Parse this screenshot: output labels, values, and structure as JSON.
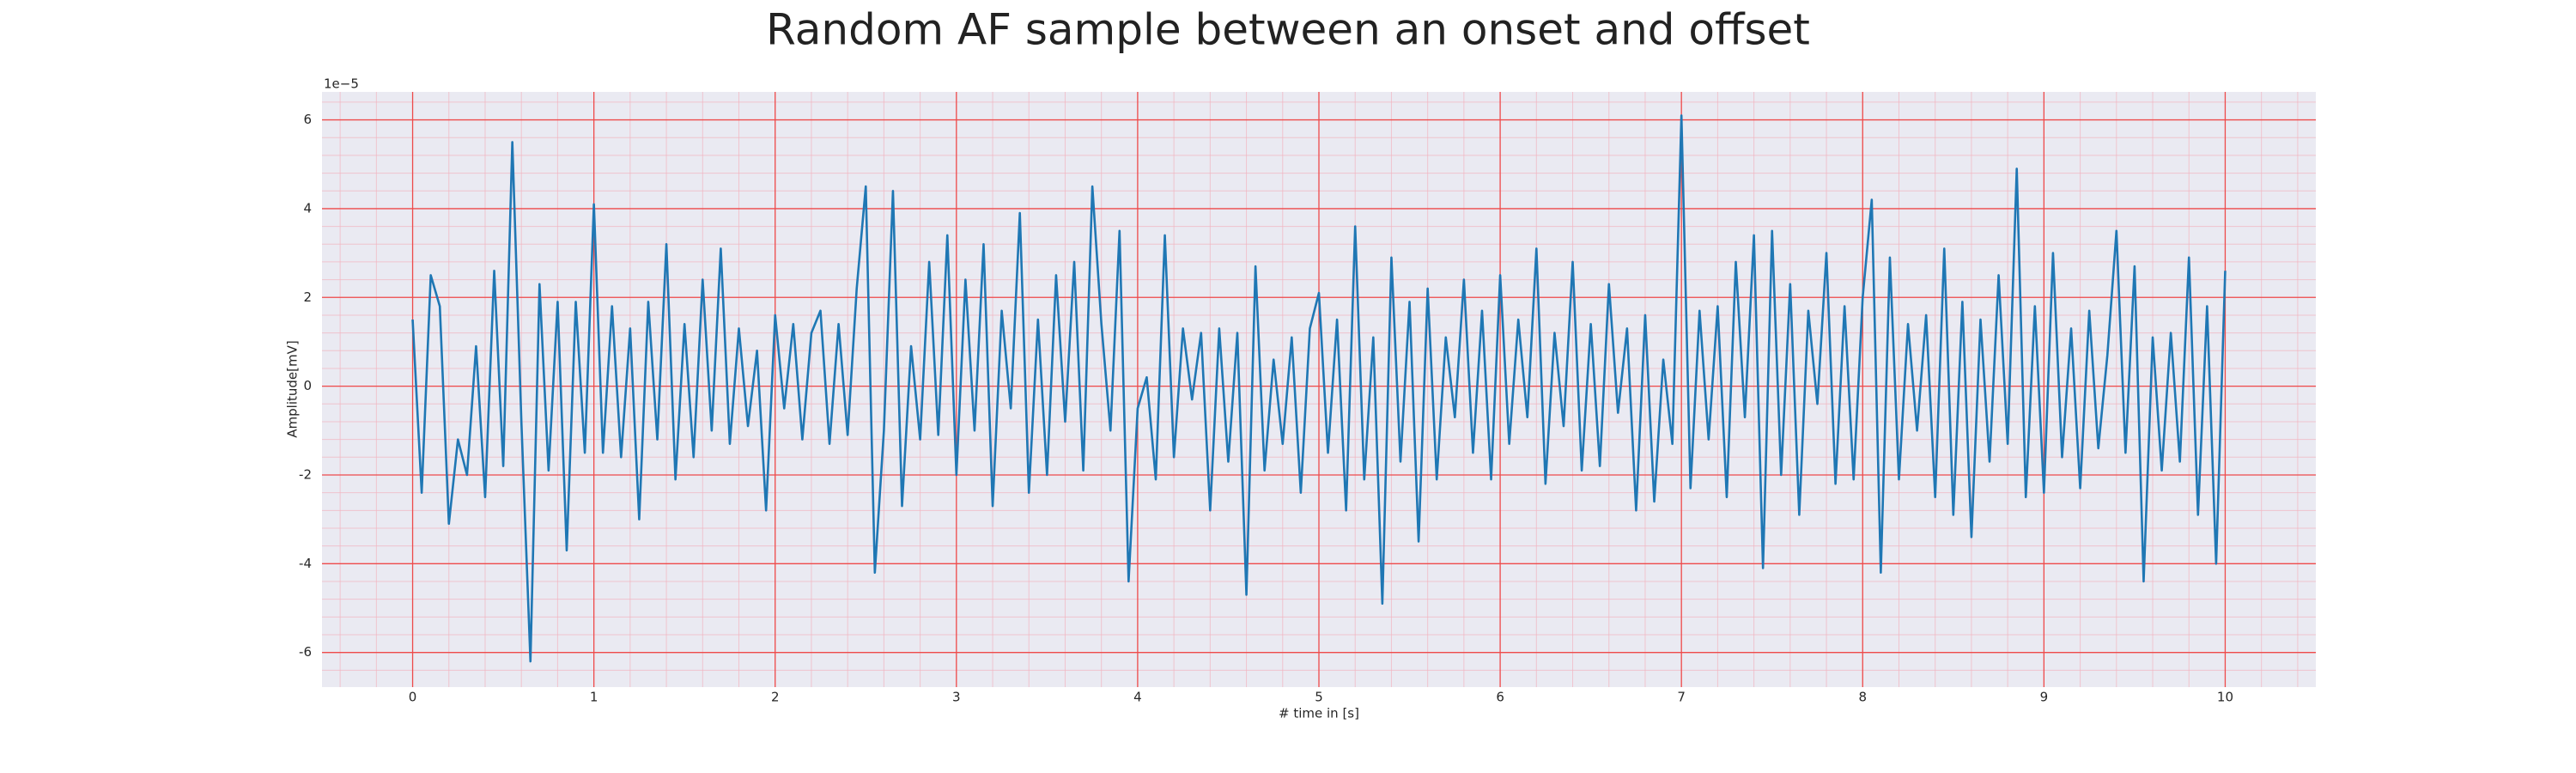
{
  "chart_data": {
    "type": "line",
    "title": "Random AF sample between an onset and offset",
    "x_label": "# time in [s]",
    "y_label": "Amplitude[mV]",
    "y_offset_label": "1e−5",
    "xlim": [
      -0.5,
      10.5
    ],
    "ylim": [
      -6.78,
      6.63
    ],
    "xticks": [
      0,
      1,
      2,
      3,
      4,
      5,
      6,
      7,
      8,
      9,
      10
    ],
    "yticks": [
      -6,
      -4,
      -2,
      0,
      2,
      4,
      6
    ],
    "grid": true,
    "minor_grid": true,
    "x": [
      0,
      0.05,
      0.1,
      0.15,
      0.2,
      0.25,
      0.3,
      0.35,
      0.4,
      0.45,
      0.5,
      0.55,
      0.6,
      0.65,
      0.7,
      0.75,
      0.8,
      0.85,
      0.9,
      0.95,
      1,
      1.05,
      1.1,
      1.15,
      1.2,
      1.25,
      1.3,
      1.35,
      1.4,
      1.45,
      1.5,
      1.55,
      1.6,
      1.65,
      1.7,
      1.75,
      1.8,
      1.85,
      1.9,
      1.95,
      2,
      2.05,
      2.1,
      2.15,
      2.2,
      2.25,
      2.3,
      2.35,
      2.4,
      2.45,
      2.5,
      2.55,
      2.6,
      2.65,
      2.7,
      2.75,
      2.8,
      2.85,
      2.9,
      2.95,
      3,
      3.05,
      3.1,
      3.15,
      3.2,
      3.25,
      3.3,
      3.35,
      3.4,
      3.45,
      3.5,
      3.55,
      3.6,
      3.65,
      3.7,
      3.75,
      3.8,
      3.85,
      3.9,
      3.95,
      4,
      4.05,
      4.1,
      4.15,
      4.2,
      4.25,
      4.3,
      4.35,
      4.4,
      4.45,
      4.5,
      4.55,
      4.6,
      4.65,
      4.7,
      4.75,
      4.8,
      4.85,
      4.9,
      4.95,
      5,
      5.05,
      5.1,
      5.15,
      5.2,
      5.25,
      5.3,
      5.35,
      5.4,
      5.45,
      5.5,
      5.55,
      5.6,
      5.65,
      5.7,
      5.75,
      5.8,
      5.85,
      5.9,
      5.95,
      6,
      6.05,
      6.1,
      6.15,
      6.2,
      6.25,
      6.3,
      6.35,
      6.4,
      6.45,
      6.5,
      6.55,
      6.6,
      6.65,
      6.7,
      6.75,
      6.8,
      6.85,
      6.9,
      6.95,
      7,
      7.05,
      7.1,
      7.15,
      7.2,
      7.25,
      7.3,
      7.35,
      7.4,
      7.45,
      7.5,
      7.55,
      7.6,
      7.65,
      7.7,
      7.75,
      7.8,
      7.85,
      7.9,
      7.95,
      8,
      8.05,
      8.1,
      8.15,
      8.2,
      8.25,
      8.3,
      8.35,
      8.4,
      8.45,
      8.5,
      8.55,
      8.6,
      8.65,
      8.7,
      8.75,
      8.8,
      8.85,
      8.9,
      8.95,
      9,
      9.05,
      9.1,
      9.15,
      9.2,
      9.25,
      9.3,
      9.35,
      9.4,
      9.45,
      9.5,
      9.55,
      9.6,
      9.65,
      9.7,
      9.75,
      9.8,
      9.85,
      9.9,
      9.95,
      10
    ],
    "series": [
      {
        "color": "#1f77b4",
        "values": [
          1.5,
          -2.4,
          2.5,
          1.8,
          -3.1,
          -1.2,
          -2.0,
          0.9,
          -2.5,
          2.6,
          -1.8,
          5.5,
          -0.8,
          -6.2,
          2.3,
          -1.9,
          1.9,
          -3.7,
          1.9,
          -1.5,
          4.1,
          -1.5,
          1.8,
          -1.6,
          1.3,
          -3.0,
          1.9,
          -1.2,
          3.2,
          -2.1,
          1.4,
          -1.6,
          2.4,
          -1.0,
          3.1,
          -1.3,
          1.3,
          -0.9,
          0.8,
          -2.8,
          1.6,
          -0.5,
          1.4,
          -1.2,
          1.2,
          1.7,
          -1.3,
          1.4,
          -1.1,
          2.2,
          4.5,
          -4.2,
          -1.0,
          4.4,
          -2.7,
          0.9,
          -1.2,
          2.8,
          -1.1,
          3.4,
          -2.0,
          2.4,
          -1.0,
          3.2,
          -2.7,
          1.7,
          -0.5,
          3.9,
          -2.4,
          1.5,
          -2.0,
          2.5,
          -0.8,
          2.8,
          -1.9,
          4.5,
          1.4,
          -1.0,
          3.5,
          -4.4,
          -0.5,
          0.2,
          -2.1,
          3.4,
          -1.6,
          1.3,
          -0.3,
          1.2,
          -2.8,
          1.3,
          -1.7,
          1.2,
          -4.7,
          2.7,
          -1.9,
          0.6,
          -1.3,
          1.1,
          -2.4,
          1.3,
          2.1,
          -1.5,
          1.5,
          -2.8,
          3.6,
          -2.1,
          1.1,
          -4.9,
          2.9,
          -1.7,
          1.9,
          -3.5,
          2.2,
          -2.1,
          1.1,
          -0.7,
          2.4,
          -1.5,
          1.7,
          -2.1,
          2.5,
          -1.3,
          1.5,
          -0.7,
          3.1,
          -2.2,
          1.2,
          -0.9,
          2.8,
          -1.9,
          1.4,
          -1.8,
          2.3,
          -0.6,
          1.3,
          -2.8,
          1.6,
          -2.6,
          0.6,
          -1.3,
          6.1,
          -2.3,
          1.7,
          -1.2,
          1.8,
          -2.5,
          2.8,
          -0.7,
          3.4,
          -4.1,
          3.5,
          -2.0,
          2.3,
          -2.9,
          1.7,
          -0.4,
          3.0,
          -2.2,
          1.8,
          -2.1,
          2.0,
          4.2,
          -4.2,
          2.9,
          -2.1,
          1.4,
          -1.0,
          1.6,
          -2.5,
          3.1,
          -2.9,
          1.9,
          -3.4,
          1.5,
          -1.7,
          2.5,
          -1.3,
          4.9,
          -2.5,
          1.8,
          -2.4,
          3.0,
          -1.6,
          1.3,
          -2.3,
          1.7,
          -1.4,
          0.7,
          3.5,
          -1.5,
          2.7,
          -4.4,
          1.1,
          -1.9,
          1.2,
          -1.7,
          2.9,
          -2.9,
          1.8,
          -4.0,
          2.6
        ]
      }
    ]
  }
}
